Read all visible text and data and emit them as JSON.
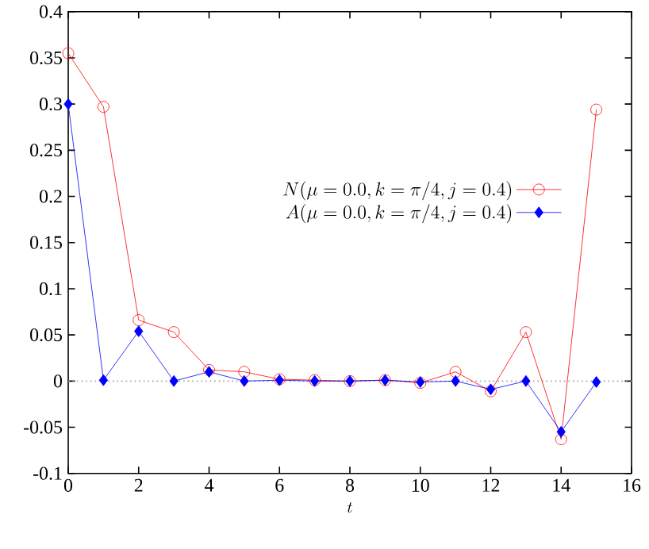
{
  "chart_data": {
    "type": "line",
    "xlabel": "t",
    "x": [
      0,
      1,
      2,
      3,
      4,
      5,
      6,
      7,
      8,
      9,
      10,
      11,
      12,
      13,
      14,
      15
    ],
    "series": [
      {
        "name": "N(\\mu = 0.0, k = \\pi/4, j = 0.4)",
        "color": "#ff0000",
        "marker": "circle",
        "values": [
          0.355,
          0.297,
          0.066,
          0.053,
          0.012,
          0.01,
          0.002,
          0.001,
          0.0,
          0.001,
          -0.002,
          0.01,
          -0.011,
          0.053,
          -0.063,
          0.294
        ]
      },
      {
        "name": "A(\\mu = 0.0, k = \\pi/4, j = 0.4)",
        "color": "#0000ff",
        "marker": "diamond",
        "values": [
          0.3,
          0.001,
          0.054,
          0.0,
          0.01,
          0.0,
          0.001,
          0.0,
          0.0,
          0.001,
          -0.001,
          0.0,
          -0.009,
          0.0,
          -0.055,
          -0.001
        ]
      }
    ],
    "xlim": [
      0,
      16
    ],
    "ylim": [
      -0.1,
      0.4
    ],
    "xticks": [
      0,
      2,
      4,
      6,
      8,
      10,
      12,
      14,
      16
    ],
    "yticks": [
      -0.1,
      -0.05,
      0,
      0.05,
      0.1,
      0.15,
      0.2,
      0.25,
      0.3,
      0.35,
      0.4
    ],
    "ref_lines": [
      {
        "axis": "y",
        "value": 0,
        "color": "#a0a0a0",
        "line_style": "dotted"
      }
    ],
    "legend": "right"
  }
}
